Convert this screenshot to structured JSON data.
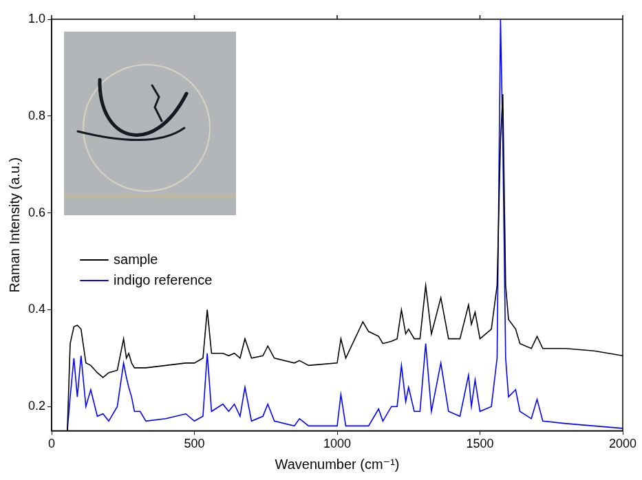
{
  "chart_data": {
    "type": "line",
    "x_label": "Wavenumber (cm⁻¹)",
    "y_label": "Raman Intensity (a.u.)",
    "x": [
      55,
      65,
      78,
      90,
      103,
      120,
      137,
      160,
      180,
      200,
      230,
      252,
      262,
      270,
      280,
      290,
      310,
      330,
      400,
      470,
      500,
      530,
      545,
      560,
      600,
      620,
      640,
      660,
      677,
      700,
      740,
      757,
      780,
      850,
      868,
      900,
      1000,
      1013,
      1030,
      1090,
      1110,
      1145,
      1160,
      1190,
      1210,
      1225,
      1240,
      1250,
      1270,
      1290,
      1310,
      1330,
      1363,
      1390,
      1430,
      1460,
      1470,
      1483,
      1500,
      1540,
      1560,
      1572,
      1580,
      1590,
      1600,
      1625,
      1640,
      1680,
      1700,
      1720,
      1800,
      1900,
      2000
    ],
    "series": [
      {
        "name": "sample",
        "color": "#000000",
        "values": [
          0.15,
          0.33,
          0.365,
          0.368,
          0.36,
          0.29,
          0.285,
          0.27,
          0.26,
          0.27,
          0.275,
          0.34,
          0.3,
          0.31,
          0.29,
          0.28,
          0.28,
          0.28,
          0.285,
          0.29,
          0.29,
          0.3,
          0.4,
          0.31,
          0.31,
          0.305,
          0.31,
          0.3,
          0.34,
          0.3,
          0.305,
          0.325,
          0.3,
          0.29,
          0.295,
          0.285,
          0.29,
          0.34,
          0.3,
          0.375,
          0.355,
          0.345,
          0.33,
          0.335,
          0.34,
          0.4,
          0.35,
          0.36,
          0.34,
          0.34,
          0.45,
          0.35,
          0.425,
          0.34,
          0.34,
          0.41,
          0.37,
          0.395,
          0.34,
          0.36,
          0.45,
          0.75,
          0.845,
          0.45,
          0.38,
          0.36,
          0.33,
          0.32,
          0.345,
          0.32,
          0.32,
          0.315,
          0.305
        ]
      },
      {
        "name": "indigo reference",
        "color": "#0000ff",
        "values": [
          0.15,
          0.22,
          0.3,
          0.22,
          0.305,
          0.2,
          0.235,
          0.18,
          0.185,
          0.17,
          0.2,
          0.29,
          0.26,
          0.24,
          0.22,
          0.19,
          0.19,
          0.17,
          0.175,
          0.185,
          0.17,
          0.18,
          0.31,
          0.19,
          0.205,
          0.19,
          0.205,
          0.18,
          0.24,
          0.17,
          0.18,
          0.205,
          0.17,
          0.16,
          0.175,
          0.16,
          0.16,
          0.225,
          0.16,
          0.16,
          0.16,
          0.195,
          0.17,
          0.2,
          0.2,
          0.285,
          0.21,
          0.24,
          0.19,
          0.19,
          0.33,
          0.19,
          0.29,
          0.19,
          0.18,
          0.265,
          0.2,
          0.255,
          0.19,
          0.2,
          0.3,
          1.0,
          0.75,
          0.3,
          0.22,
          0.235,
          0.19,
          0.175,
          0.215,
          0.17,
          0.165,
          0.16,
          0.155
        ]
      }
    ],
    "xlim": [
      0,
      2000
    ],
    "xticks": [
      0,
      500,
      1000,
      1500,
      2000
    ],
    "ylim": [
      0.15,
      1.0
    ],
    "yticks": [
      0.2,
      0.4,
      0.6,
      0.8,
      {
        "value": 1,
        "label": "1.0"
      }
    ],
    "grid": false,
    "legend": "upper left"
  }
}
